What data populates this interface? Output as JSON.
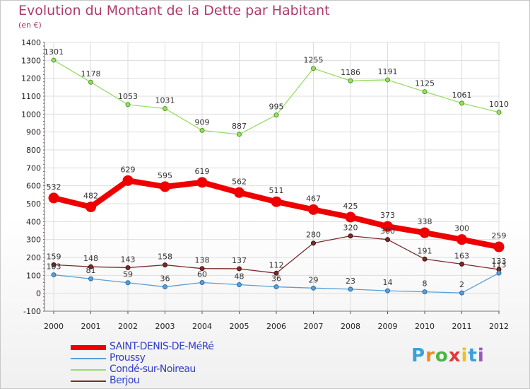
{
  "title": "Evolution du Montant de la Dette par Habitant",
  "unit": "(en €)",
  "logo": {
    "text": "Proxiti"
  },
  "chart_data": {
    "type": "line",
    "title": "Evolution du Montant de la Dette par Habitant",
    "ylabel": "(en €)",
    "xlabel": "",
    "x": [
      2000,
      2001,
      2002,
      2003,
      2004,
      2005,
      2006,
      2007,
      2008,
      2009,
      2010,
      2011,
      2012
    ],
    "ylim": [
      -100,
      1400
    ],
    "yticks": [
      -100,
      0,
      100,
      200,
      300,
      400,
      500,
      600,
      700,
      800,
      900,
      1000,
      1100,
      1200,
      1300,
      1400
    ],
    "grid": true,
    "legend_position": "bottom",
    "series": [
      {
        "name": "SAINT-DENIS-DE-MéRé",
        "color": "#ee0000",
        "values": [
          532,
          482,
          629,
          595,
          619,
          562,
          511,
          467,
          425,
          373,
          338,
          300,
          259
        ]
      },
      {
        "name": "Proussy",
        "color": "#5a9fd6",
        "values": [
          103,
          81,
          59,
          36,
          60,
          48,
          36,
          29,
          23,
          14,
          8,
          2,
          113
        ]
      },
      {
        "name": "Condé-sur-Noireau",
        "color": "#99dd66",
        "values": [
          1301,
          1178,
          1053,
          1031,
          909,
          887,
          995,
          1255,
          1186,
          1191,
          1125,
          1061,
          1010
        ]
      },
      {
        "name": "Berjou",
        "color": "#7a2a2a",
        "values": [
          159,
          148,
          143,
          158,
          138,
          137,
          112,
          280,
          320,
          300,
          191,
          163,
          133
        ]
      }
    ]
  }
}
